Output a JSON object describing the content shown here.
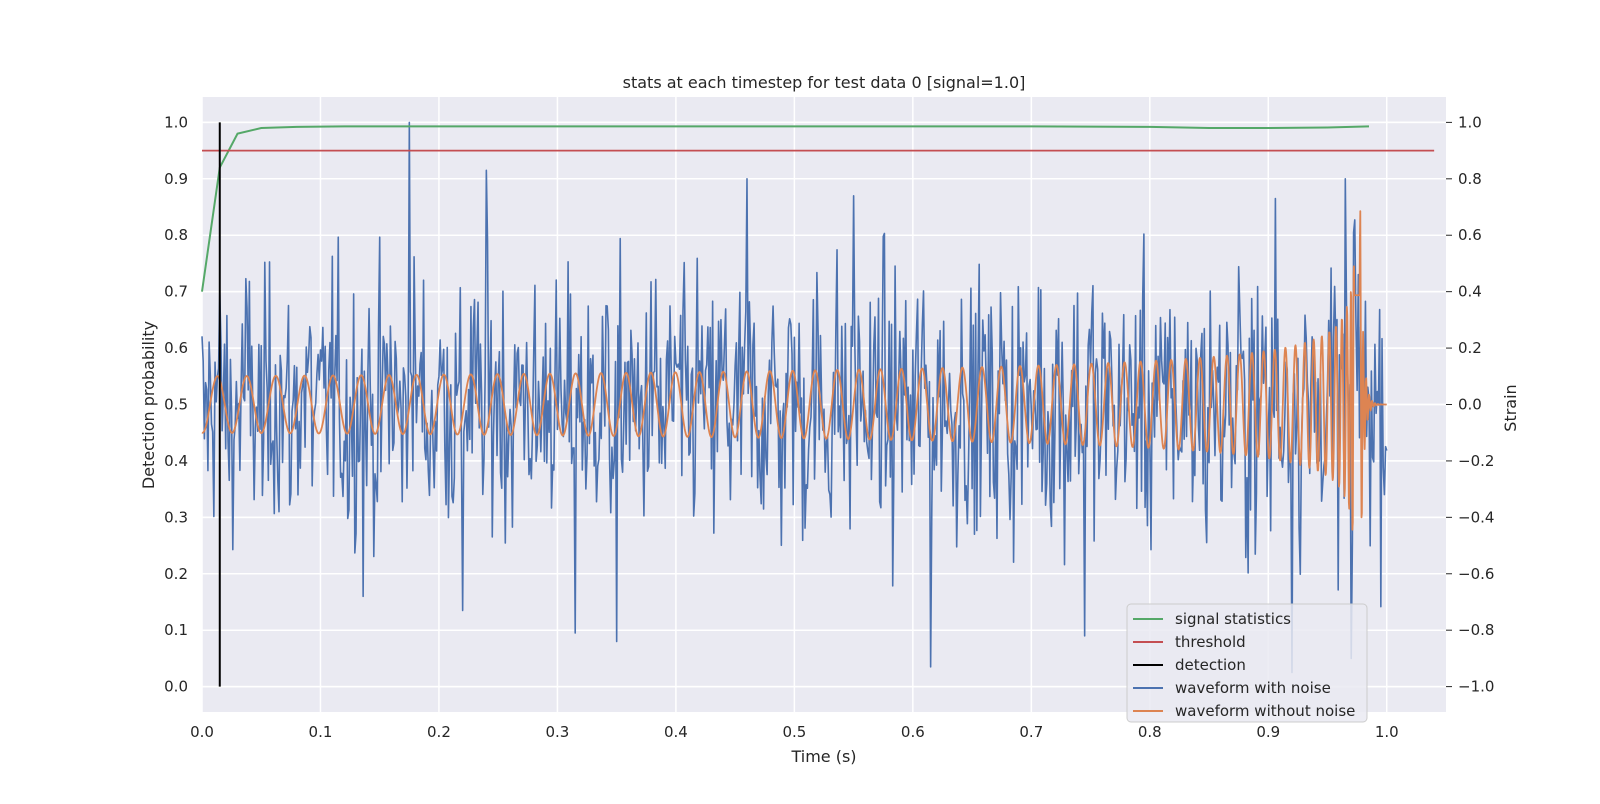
{
  "chart_data": {
    "type": "line",
    "title": "stats at each timestep for test data 0 [signal=1.0]",
    "xlabel": "Time (s)",
    "ylabel": "Detection probability",
    "ylabel_right": "Strain",
    "xlim": [
      0.0,
      1.05
    ],
    "ylim": [
      -0.045,
      1.045
    ],
    "ylim_right": [
      -1.09,
      1.09
    ],
    "xticks": [
      "0.0",
      "0.1",
      "0.2",
      "0.3",
      "0.4",
      "0.5",
      "0.6",
      "0.7",
      "0.8",
      "0.9",
      "1.0"
    ],
    "yticks": [
      "0.0",
      "0.1",
      "0.2",
      "0.3",
      "0.4",
      "0.5",
      "0.6",
      "0.7",
      "0.8",
      "0.9",
      "1.0"
    ],
    "yticks_right": [
      "−1.0",
      "−0.8",
      "−0.6",
      "−0.4",
      "−0.2",
      "0.0",
      "0.2",
      "0.4",
      "0.6",
      "0.8",
      "1.0"
    ],
    "grid": true,
    "legend_position": "lower-right",
    "series": [
      {
        "name": "signal statistics",
        "axis": "left",
        "color": "#55a868",
        "x": [
          0.0,
          0.015,
          0.03,
          0.05,
          0.08,
          0.12,
          0.3,
          0.5,
          0.7,
          0.8,
          0.85,
          0.9,
          0.95,
          0.985
        ],
        "y": [
          0.7,
          0.92,
          0.98,
          0.99,
          0.992,
          0.993,
          0.993,
          0.993,
          0.993,
          0.992,
          0.99,
          0.99,
          0.991,
          0.993
        ]
      },
      {
        "name": "threshold",
        "axis": "left",
        "color": "#c44e52",
        "x": [
          0.0,
          1.04
        ],
        "y": [
          0.95,
          0.95
        ]
      },
      {
        "name": "detection",
        "axis": "left",
        "color": "#000000",
        "x": [
          0.015,
          0.015
        ],
        "y": [
          0.0,
          1.0
        ]
      },
      {
        "name": "waveform with noise",
        "axis": "right",
        "color": "#4c72b0",
        "x_start": 0.0,
        "x_end": 1.0,
        "peaks": [
          {
            "x": 0.175,
            "y": 1.0
          },
          {
            "x": 0.24,
            "y": 0.83
          },
          {
            "x": 0.46,
            "y": 0.8
          },
          {
            "x": 0.615,
            "y": -0.93
          },
          {
            "x": 0.55,
            "y": 0.74
          },
          {
            "x": 0.35,
            "y": -0.84
          },
          {
            "x": 0.315,
            "y": -0.81
          },
          {
            "x": 0.136,
            "y": -0.68
          },
          {
            "x": 0.22,
            "y": -0.73
          },
          {
            "x": 0.745,
            "y": -0.82
          },
          {
            "x": 0.97,
            "y": -0.9
          },
          {
            "x": 0.906,
            "y": 0.73
          },
          {
            "x": 0.92,
            "y": -0.95
          },
          {
            "x": 0.965,
            "y": 0.8
          }
        ]
      },
      {
        "name": "waveform without noise",
        "axis": "right",
        "color": "#dd8452",
        "x_start": 0.0,
        "x_end": 1.0,
        "merger_x": 0.973
      }
    ]
  }
}
